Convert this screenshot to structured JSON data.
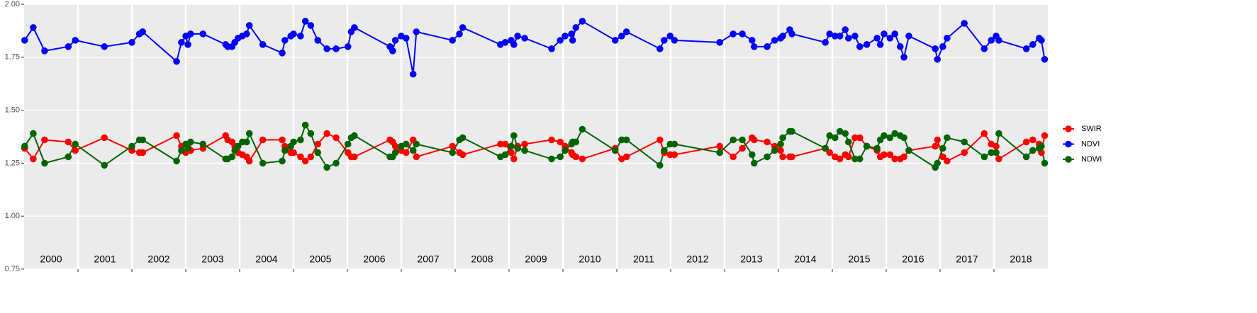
{
  "chart_data": {
    "type": "line",
    "x": [
      2000.01,
      2000.17,
      2000.38,
      2000.82,
      2000.95,
      2001.49,
      2002.0,
      2002.14,
      2002.2,
      2002.83,
      2002.92,
      2003.0,
      2003.04,
      2003.09,
      2003.32,
      2003.74,
      2003.78,
      2003.86,
      2003.91,
      2003.97,
      2004.05,
      2004.13,
      2004.18,
      2004.43,
      2004.79,
      2004.84,
      2004.95,
      2005.0,
      2005.13,
      2005.22,
      2005.32,
      2005.45,
      2005.62,
      2005.79,
      2006.01,
      2006.07,
      2006.13,
      2006.79,
      2006.84,
      2006.89,
      2007.0,
      2007.09,
      2007.22,
      2007.28,
      2007.95,
      2008.08,
      2008.14,
      2008.84,
      2008.93,
      2009.04,
      2009.09,
      2009.16,
      2009.29,
      2009.79,
      2009.95,
      2010.04,
      2010.16,
      2010.18,
      2010.24,
      2010.36,
      2010.97,
      2011.09,
      2011.18,
      2011.8,
      2011.88,
      2011.99,
      2012.07,
      2012.91,
      2013.16,
      2013.33,
      2013.51,
      2013.55,
      2013.79,
      2013.93,
      2014.04,
      2014.08,
      2014.21,
      2014.25,
      2014.87,
      2014.95,
      2015.05,
      2015.14,
      2015.24,
      2015.3,
      2015.42,
      2015.51,
      2015.64,
      2015.83,
      2015.89,
      2015.96,
      2016.07,
      2016.16,
      2016.26,
      2016.33,
      2016.42,
      2016.91,
      2016.95,
      2017.05,
      2017.13,
      2017.45,
      2017.82,
      2017.95,
      2018.04,
      2018.09,
      2018.6,
      2018.72,
      2018.84,
      2018.88,
      2018.94
    ],
    "series": [
      {
        "name": "SWIR",
        "color": "#ff0000",
        "values": [
          1.32,
          1.27,
          1.36,
          1.35,
          1.31,
          1.37,
          1.31,
          1.3,
          1.3,
          1.38,
          1.33,
          1.3,
          1.33,
          1.31,
          1.32,
          1.38,
          1.36,
          1.35,
          1.33,
          1.3,
          1.29,
          1.28,
          1.26,
          1.36,
          1.36,
          1.33,
          1.3,
          1.3,
          1.28,
          1.26,
          1.28,
          1.34,
          1.39,
          1.37,
          1.3,
          1.28,
          1.28,
          1.36,
          1.35,
          1.33,
          1.31,
          1.3,
          1.36,
          1.28,
          1.33,
          1.3,
          1.29,
          1.34,
          1.34,
          1.3,
          1.27,
          1.33,
          1.34,
          1.36,
          1.35,
          1.33,
          1.3,
          1.29,
          1.28,
          1.27,
          1.32,
          1.27,
          1.28,
          1.36,
          1.3,
          1.29,
          1.29,
          1.33,
          1.28,
          1.32,
          1.37,
          1.36,
          1.35,
          1.33,
          1.31,
          1.28,
          1.28,
          1.28,
          1.32,
          1.3,
          1.28,
          1.27,
          1.29,
          1.28,
          1.37,
          1.37,
          1.33,
          1.31,
          1.28,
          1.29,
          1.29,
          1.27,
          1.27,
          1.28,
          1.31,
          1.33,
          1.36,
          1.28,
          1.26,
          1.3,
          1.39,
          1.34,
          1.33,
          1.27,
          1.35,
          1.36,
          1.34,
          1.3,
          1.38
        ]
      },
      {
        "name": "NDVI",
        "color": "#0000ff",
        "values": [
          1.83,
          1.89,
          1.78,
          1.8,
          1.83,
          1.8,
          1.82,
          1.86,
          1.87,
          1.73,
          1.82,
          1.85,
          1.81,
          1.86,
          1.86,
          1.81,
          1.8,
          1.8,
          1.82,
          1.84,
          1.85,
          1.86,
          1.9,
          1.81,
          1.77,
          1.83,
          1.85,
          1.86,
          1.85,
          1.92,
          1.9,
          1.83,
          1.79,
          1.79,
          1.8,
          1.87,
          1.89,
          1.8,
          1.78,
          1.83,
          1.85,
          1.84,
          1.67,
          1.87,
          1.83,
          1.86,
          1.89,
          1.81,
          1.82,
          1.83,
          1.81,
          1.85,
          1.84,
          1.79,
          1.83,
          1.85,
          1.86,
          1.83,
          1.89,
          1.92,
          1.83,
          1.85,
          1.87,
          1.79,
          1.83,
          1.85,
          1.83,
          1.82,
          1.86,
          1.86,
          1.83,
          1.8,
          1.8,
          1.83,
          1.84,
          1.85,
          1.88,
          1.86,
          1.82,
          1.86,
          1.85,
          1.85,
          1.88,
          1.84,
          1.85,
          1.8,
          1.81,
          1.84,
          1.81,
          1.86,
          1.84,
          1.86,
          1.8,
          1.75,
          1.85,
          1.79,
          1.74,
          1.8,
          1.84,
          1.91,
          1.79,
          1.83,
          1.85,
          1.83,
          1.79,
          1.81,
          1.84,
          1.83,
          1.74
        ]
      },
      {
        "name": "NDWI",
        "color": "#006400",
        "values": [
          1.33,
          1.39,
          1.25,
          1.28,
          1.34,
          1.24,
          1.33,
          1.36,
          1.36,
          1.26,
          1.31,
          1.34,
          1.32,
          1.35,
          1.34,
          1.27,
          1.27,
          1.28,
          1.31,
          1.33,
          1.35,
          1.35,
          1.39,
          1.25,
          1.26,
          1.31,
          1.33,
          1.35,
          1.36,
          1.43,
          1.39,
          1.3,
          1.23,
          1.25,
          1.34,
          1.37,
          1.38,
          1.28,
          1.28,
          1.3,
          1.33,
          1.34,
          1.31,
          1.34,
          1.3,
          1.36,
          1.37,
          1.28,
          1.29,
          1.33,
          1.38,
          1.32,
          1.31,
          1.27,
          1.28,
          1.31,
          1.34,
          1.35,
          1.35,
          1.41,
          1.31,
          1.36,
          1.36,
          1.24,
          1.31,
          1.34,
          1.34,
          1.3,
          1.36,
          1.36,
          1.29,
          1.25,
          1.28,
          1.31,
          1.34,
          1.37,
          1.4,
          1.4,
          1.32,
          1.38,
          1.37,
          1.4,
          1.39,
          1.35,
          1.27,
          1.27,
          1.33,
          1.32,
          1.36,
          1.38,
          1.37,
          1.39,
          1.38,
          1.37,
          1.31,
          1.23,
          1.25,
          1.32,
          1.37,
          1.35,
          1.28,
          1.3,
          1.3,
          1.39,
          1.28,
          1.31,
          1.32,
          1.33,
          1.25
        ]
      }
    ],
    "years": [
      2000,
      2001,
      2002,
      2003,
      2004,
      2005,
      2006,
      2007,
      2008,
      2009,
      2010,
      2011,
      2012,
      2013,
      2014,
      2015,
      2016,
      2017,
      2018
    ],
    "xlim": [
      2000,
      2019
    ],
    "ylim": [
      0.75,
      2
    ],
    "yticks": [
      {
        "value": 0.75,
        "label": "0.75"
      },
      {
        "value": 1,
        "label": "1.00"
      },
      {
        "value": 1.25,
        "label": "1.25"
      },
      {
        "value": 1.5,
        "label": "1.50"
      },
      {
        "value": 1.75,
        "label": "1.75"
      },
      {
        "value": 2,
        "label": "2.00"
      }
    ],
    "grid": true,
    "legend": "right"
  }
}
